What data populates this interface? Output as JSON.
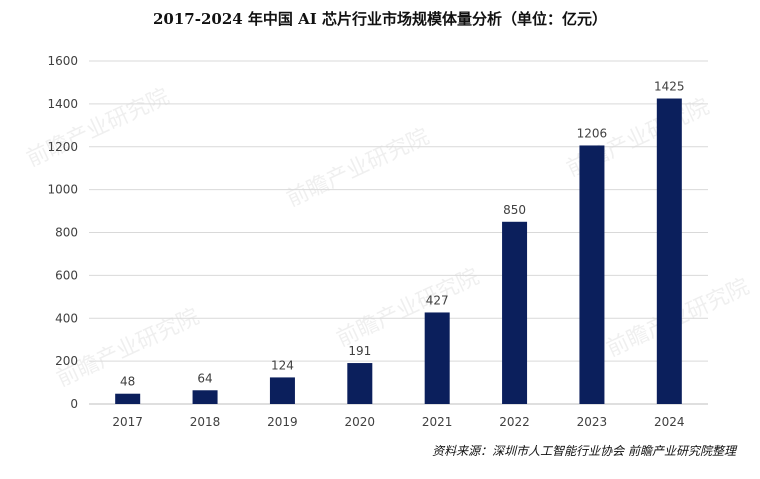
{
  "chart_data": {
    "type": "bar",
    "title": "2017-2024 年中国 AI 芯片行业市场规模体量分析（单位：亿元）",
    "categories": [
      "2017",
      "2018",
      "2019",
      "2020",
      "2021",
      "2022",
      "2023",
      "2024"
    ],
    "values": [
      48,
      64,
      124,
      191,
      427,
      850,
      1206,
      1425
    ],
    "ylim": [
      0,
      1600
    ],
    "yticks": [
      0,
      200,
      400,
      600,
      800,
      1000,
      1200,
      1400,
      1600
    ],
    "grid": true,
    "legend": "none",
    "bar_color": "#0b1f5c"
  },
  "source": "资料来源：深圳市人工智能行业协会  前瞻产业研究院整理",
  "watermark": "前瞻产业研究院"
}
